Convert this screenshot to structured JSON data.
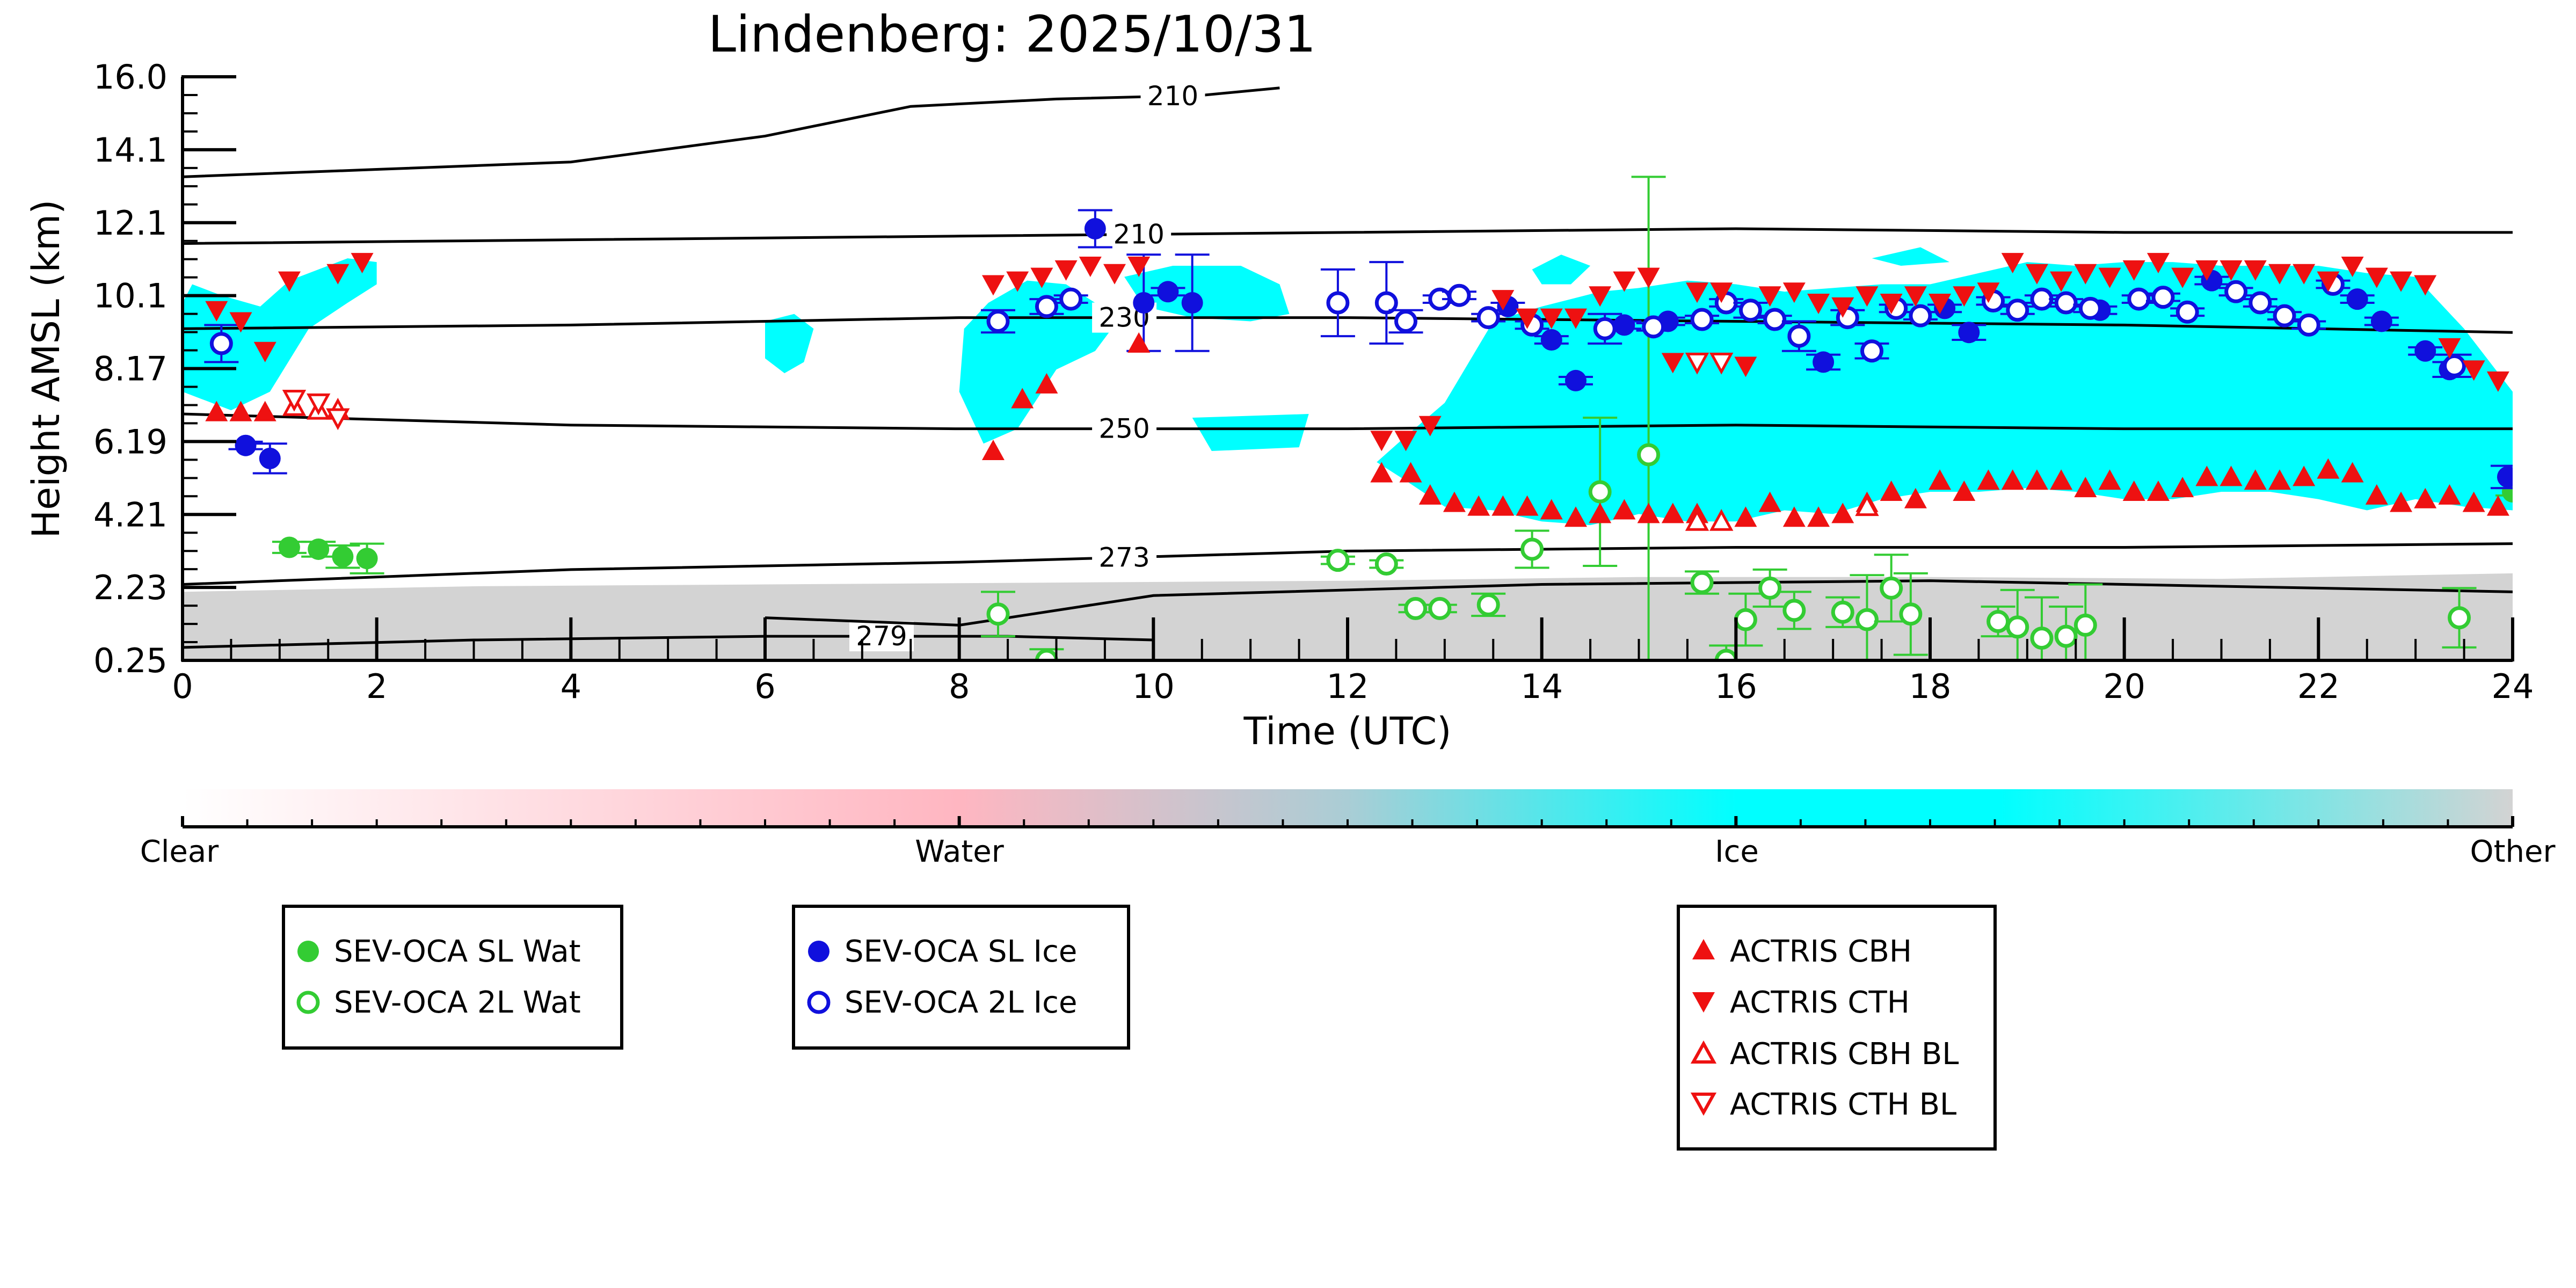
{
  "chart_data": {
    "type": "scatter",
    "title": "Lindenberg: 2025/10/31",
    "xlabel": "Time (UTC)",
    "ylabel": "Height AMSL (km)",
    "xlim": [
      0,
      24
    ],
    "ylim_labels": [
      "0.25",
      "2.23",
      "4.21",
      "6.19",
      "8.17",
      "10.1",
      "12.1",
      "14.1",
      "16.0"
    ],
    "ylim": [
      0.25,
      16.0
    ],
    "x_ticks": [
      "0",
      "2",
      "4",
      "6",
      "8",
      "10",
      "12",
      "14",
      "16",
      "18",
      "20",
      "22",
      "24"
    ],
    "colorbar": {
      "labels": [
        "Clear",
        "Water",
        "Ice",
        "Other"
      ],
      "colors": [
        "#ffffff",
        "#ffb6c1",
        "#00ffff",
        "#d3d3d3"
      ]
    },
    "background": {
      "ice_color": "#00ffff",
      "other_color": "#d3d3d3",
      "ice_regions": [
        {
          "x": [
            0,
            0.1,
            0.4,
            0.8,
            1.1,
            1.4,
            1.7,
            2.0,
            2.0,
            1.7,
            1.3,
            0.9,
            0.5,
            0.2,
            0
          ],
          "y": [
            9.9,
            10.4,
            10.1,
            9.8,
            10.5,
            10.8,
            11.1,
            11.0,
            10.4,
            9.9,
            9.2,
            7.5,
            7.0,
            7.3,
            7.5
          ]
        },
        {
          "x": [
            8.05,
            8.3,
            8.7,
            9.1,
            9.4,
            9.6,
            9.4,
            9.0,
            8.6,
            8.25,
            8.0
          ],
          "y": [
            9.2,
            9.9,
            10.5,
            10.4,
            9.9,
            9.3,
            8.6,
            8.1,
            6.5,
            6.1,
            7.5
          ]
        },
        {
          "x": [
            9.7,
            10.2,
            10.9,
            11.3,
            11.4,
            11.0,
            10.4,
            9.9
          ],
          "y": [
            10.6,
            10.9,
            10.9,
            10.4,
            9.6,
            9.4,
            9.5,
            9.8
          ]
        },
        {
          "x": [
            6.0,
            6.3,
            6.5,
            6.4,
            6.2,
            6.0
          ],
          "y": [
            9.4,
            9.6,
            9.2,
            8.3,
            8.0,
            8.4
          ]
        },
        {
          "x": [
            10.4,
            11.6,
            11.5,
            10.6
          ],
          "y": [
            6.8,
            6.9,
            6.0,
            5.9
          ]
        },
        {
          "x": [
            12.6,
            13.0,
            13.5,
            14.0,
            14.6,
            15.0,
            15.5,
            16.0,
            16.5,
            17.0,
            17.5,
            18.0,
            18.5,
            19.0,
            19.5,
            20.0,
            20.5,
            21.0,
            21.5,
            22.0,
            22.5,
            23.0,
            23.5,
            24.0,
            24.0,
            23.5,
            23.0,
            22.5,
            22.0,
            21.5,
            21.0,
            20.5,
            20.0,
            19.5,
            19.0,
            18.5,
            18.0,
            17.5,
            17.0,
            16.5,
            16.0,
            15.5,
            15.0,
            14.5,
            14.0,
            13.5,
            13.0,
            12.6,
            12.3
          ],
          "y": [
            6.3,
            7.2,
            9.4,
            9.8,
            10.2,
            10.3,
            10.5,
            10.4,
            10.2,
            10.3,
            10.4,
            10.4,
            10.7,
            11.0,
            10.9,
            11.0,
            11.0,
            10.9,
            10.9,
            10.9,
            10.7,
            10.6,
            9.2,
            7.5,
            4.3,
            4.4,
            4.6,
            4.3,
            4.6,
            4.8,
            4.8,
            4.6,
            4.6,
            4.8,
            4.9,
            4.8,
            4.8,
            4.6,
            4.2,
            4.3,
            4.0,
            4.0,
            4.2,
            3.9,
            4.0,
            4.3,
            4.4,
            5.1,
            5.6
          ]
        },
        {
          "x": [
            13.9,
            14.2,
            14.5,
            14.3,
            14.0
          ],
          "y": [
            10.8,
            11.2,
            10.9,
            10.4,
            10.4
          ]
        },
        {
          "x": [
            17.4,
            17.9,
            18.2,
            17.7
          ],
          "y": [
            11.1,
            11.4,
            11.0,
            10.9
          ]
        }
      ],
      "other_region": {
        "top": [
          [
            0,
            2.1
          ],
          [
            3,
            2.25
          ],
          [
            6,
            2.3
          ],
          [
            9,
            2.35
          ],
          [
            12,
            2.4
          ],
          [
            15,
            2.5
          ],
          [
            18,
            2.5
          ],
          [
            21,
            2.45
          ],
          [
            24,
            2.6
          ]
        ]
      }
    },
    "contours": [
      {
        "label": "210",
        "label_x": 10.2,
        "points": [
          [
            0,
            13.3
          ],
          [
            2,
            13.5
          ],
          [
            4,
            13.7
          ],
          [
            6,
            14.4
          ],
          [
            7.5,
            15.2
          ],
          [
            9,
            15.4
          ],
          [
            10.5,
            15.5
          ],
          [
            11.3,
            15.7
          ]
        ]
      },
      {
        "label": "210",
        "label_x": 9.85,
        "points": [
          [
            0,
            11.5
          ],
          [
            4,
            11.6
          ],
          [
            8,
            11.7
          ],
          [
            12,
            11.8
          ],
          [
            16,
            11.9
          ],
          [
            20,
            11.8
          ],
          [
            24,
            11.8
          ]
        ]
      },
      {
        "label": "230",
        "label_x": 9.7,
        "points": [
          [
            0,
            9.2
          ],
          [
            4,
            9.3
          ],
          [
            8,
            9.5
          ],
          [
            12,
            9.5
          ],
          [
            16,
            9.4
          ],
          [
            20,
            9.3
          ],
          [
            24,
            9.1
          ]
        ]
      },
      {
        "label": "250",
        "label_x": 9.7,
        "points": [
          [
            0,
            6.9
          ],
          [
            4,
            6.6
          ],
          [
            8,
            6.5
          ],
          [
            12,
            6.5
          ],
          [
            16,
            6.6
          ],
          [
            20,
            6.5
          ],
          [
            24,
            6.5
          ]
        ]
      },
      {
        "label": "273",
        "label_x": 9.7,
        "points": [
          [
            0,
            2.3
          ],
          [
            4,
            2.7
          ],
          [
            8,
            2.9
          ],
          [
            12,
            3.2
          ],
          [
            16,
            3.3
          ],
          [
            20,
            3.3
          ],
          [
            24,
            3.4
          ]
        ]
      },
      {
        "label": "279",
        "label_x": 7.2,
        "points": [
          [
            0,
            0.6
          ],
          [
            3,
            0.8
          ],
          [
            6,
            0.9
          ],
          [
            8.5,
            0.9
          ],
          [
            10,
            0.8
          ]
        ]
      },
      {
        "label": "",
        "label_x": 0,
        "points": [
          [
            6,
            1.4
          ],
          [
            8,
            1.2
          ],
          [
            10,
            2.0
          ],
          [
            14,
            2.3
          ],
          [
            18,
            2.4
          ],
          [
            22,
            2.2
          ],
          [
            24,
            2.1
          ]
        ]
      }
    ],
    "series": [
      {
        "name": "SEV-OCA SL Wat",
        "marker": "circle-filled",
        "color": "#33cc33",
        "x": [
          1.1,
          1.4,
          1.65,
          1.9,
          24.0
        ],
        "y": [
          3.3,
          3.25,
          3.05,
          3.0,
          4.8
        ],
        "err": [
          0.15,
          0.2,
          0.3,
          0.4,
          0.1
        ]
      },
      {
        "name": "SEV-OCA 2L Wat",
        "marker": "circle-open",
        "color": "#33cc33",
        "x": [
          8.4,
          8.9,
          11.9,
          12.4,
          12.7,
          12.95,
          13.45,
          13.9,
          14.6,
          15.1,
          15.65,
          15.9,
          16.1,
          16.35,
          16.6,
          17.1,
          17.35,
          17.6,
          17.8,
          18.7,
          18.9,
          19.15,
          19.4,
          19.6,
          23.45
        ],
        "y": [
          1.5,
          0.25,
          2.95,
          2.85,
          1.65,
          1.65,
          1.75,
          3.25,
          4.8,
          5.8,
          2.35,
          0.25,
          1.35,
          2.2,
          1.6,
          1.55,
          1.35,
          2.2,
          1.5,
          1.3,
          1.15,
          0.85,
          0.9,
          1.2,
          1.4
        ],
        "err": [
          0.6,
          0.3,
          0.1,
          0.1,
          0.1,
          0.1,
          0.3,
          0.5,
          2.0,
          7.5,
          0.3,
          0.4,
          0.7,
          0.5,
          0.5,
          0.4,
          1.2,
          0.9,
          1.1,
          0.4,
          1.0,
          1.1,
          0.8,
          1.1,
          0.8
        ]
      },
      {
        "name": "SEV-OCA SL Ice",
        "marker": "circle-filled",
        "color": "#1010dd",
        "x": [
          0.65,
          0.9,
          9.4,
          9.9,
          10.15,
          10.4,
          13.65,
          14.1,
          14.35,
          14.85,
          15.3,
          16.9,
          18.15,
          18.4,
          19.75,
          20.9,
          22.4,
          22.65,
          23.1,
          23.35,
          23.95
        ],
        "y": [
          6.05,
          5.7,
          11.9,
          9.9,
          10.2,
          9.9,
          9.8,
          8.9,
          7.8,
          9.3,
          9.4,
          8.3,
          9.75,
          9.1,
          9.7,
          10.5,
          10.0,
          9.4,
          8.6,
          8.1,
          5.2
        ],
        "err": [
          0.1,
          0.4,
          0.5,
          1.3,
          0.1,
          1.3,
          0.1,
          0.1,
          0.1,
          0.1,
          0.1,
          0.2,
          0.1,
          0.2,
          0.1,
          0.1,
          0.1,
          0.1,
          0.1,
          0.2,
          0.3
        ]
      },
      {
        "name": "SEV-OCA 2L Ice",
        "marker": "circle-open",
        "color": "#1010dd",
        "x": [
          0.4,
          8.4,
          8.9,
          9.15,
          11.9,
          12.4,
          12.6,
          12.95,
          13.15,
          13.45,
          13.9,
          14.65,
          15.15,
          15.65,
          15.9,
          16.15,
          16.4,
          16.65,
          17.15,
          17.4,
          17.65,
          17.9,
          18.65,
          18.9,
          19.15,
          19.4,
          19.65,
          20.15,
          20.4,
          20.65,
          21.15,
          21.4,
          21.65,
          21.9,
          22.15,
          23.4
        ],
        "y": [
          8.8,
          9.4,
          9.8,
          10.0,
          9.9,
          9.9,
          9.4,
          10.0,
          10.1,
          9.5,
          9.3,
          9.2,
          9.25,
          9.45,
          9.9,
          9.7,
          9.45,
          9.0,
          9.5,
          8.6,
          9.75,
          9.55,
          9.95,
          9.7,
          10.0,
          9.9,
          9.75,
          10.0,
          10.05,
          9.65,
          10.2,
          9.9,
          9.55,
          9.3,
          10.4,
          8.2
        ],
        "err": [
          0.5,
          0.3,
          0.2,
          0.1,
          0.9,
          1.1,
          0.3,
          0.1,
          0.1,
          0.1,
          0.1,
          0.4,
          0.1,
          0.1,
          0.1,
          0.2,
          0.1,
          0.4,
          0.2,
          0.2,
          0.1,
          0.1,
          0.1,
          0.1,
          0.1,
          0.1,
          0.1,
          0.1,
          0.1,
          0.1,
          0.1,
          0.1,
          0.1,
          0.1,
          0.1,
          0.3
        ]
      },
      {
        "name": "ACTRIS CBH",
        "marker": "triangle-up-filled",
        "color": "#ee1111",
        "x": [
          0.35,
          0.6,
          0.85,
          8.35,
          8.65,
          8.9,
          9.85,
          12.35,
          12.65,
          12.85,
          13.1,
          13.35,
          13.6,
          13.85,
          14.1,
          14.35,
          14.6,
          14.85,
          15.1,
          15.35,
          15.6,
          16.1,
          16.35,
          16.6,
          16.85,
          17.1,
          17.35,
          17.6,
          17.85,
          18.1,
          18.35,
          18.6,
          18.85,
          19.1,
          19.35,
          19.6,
          19.85,
          20.1,
          20.35,
          20.6,
          20.85,
          21.1,
          21.35,
          21.6,
          21.85,
          22.1,
          22.35,
          22.6,
          22.85,
          23.1,
          23.35,
          23.6,
          23.85
        ],
        "y": [
          6.95,
          6.95,
          6.95,
          5.9,
          7.3,
          7.7,
          8.8,
          5.3,
          5.3,
          4.7,
          4.5,
          4.4,
          4.4,
          4.4,
          4.3,
          4.1,
          4.2,
          4.3,
          4.2,
          4.2,
          4.2,
          4.1,
          4.5,
          4.1,
          4.1,
          4.2,
          4.5,
          4.8,
          4.6,
          5.1,
          4.8,
          5.1,
          5.1,
          5.1,
          5.1,
          4.9,
          5.1,
          4.8,
          4.8,
          4.9,
          5.2,
          5.2,
          5.1,
          5.1,
          5.2,
          5.4,
          5.3,
          4.7,
          4.5,
          4.6,
          4.7,
          4.5,
          4.4
        ],
        "err": []
      },
      {
        "name": "ACTRIS CTH",
        "marker": "triangle-down-filled",
        "color": "#ee1111",
        "x": [
          0.35,
          0.6,
          0.85,
          1.1,
          1.6,
          1.85,
          8.35,
          8.6,
          8.85,
          9.1,
          9.35,
          9.6,
          9.85,
          12.35,
          12.6,
          12.85,
          13.6,
          13.85,
          14.1,
          14.35,
          14.6,
          14.85,
          15.1,
          15.35,
          15.6,
          15.85,
          16.1,
          16.35,
          16.6,
          16.85,
          17.1,
          17.35,
          17.6,
          17.85,
          18.1,
          18.35,
          18.6,
          18.85,
          19.1,
          19.35,
          19.6,
          19.85,
          20.1,
          20.35,
          20.6,
          20.85,
          21.1,
          21.35,
          21.6,
          21.85,
          22.1,
          22.35,
          22.6,
          22.85,
          23.1,
          23.35,
          23.6,
          23.85
        ],
        "y": [
          9.7,
          9.4,
          8.6,
          10.5,
          10.7,
          11.0,
          10.4,
          10.5,
          10.6,
          10.8,
          10.9,
          10.7,
          10.9,
          6.2,
          6.2,
          6.6,
          10.0,
          9.5,
          9.5,
          9.5,
          10.1,
          10.5,
          10.6,
          8.3,
          10.2,
          10.2,
          8.2,
          10.1,
          10.2,
          9.9,
          9.8,
          10.1,
          9.9,
          10.1,
          9.9,
          10.1,
          10.2,
          11.0,
          10.7,
          10.5,
          10.7,
          10.6,
          10.8,
          11.0,
          10.6,
          10.8,
          10.8,
          10.8,
          10.7,
          10.7,
          10.5,
          10.9,
          10.6,
          10.5,
          10.4,
          8.7,
          8.1,
          7.8
        ],
        "err": []
      },
      {
        "name": "ACTRIS CBH BL",
        "marker": "triangle-up-open",
        "color": "#ee1111",
        "x": [
          1.15,
          1.4,
          1.6,
          15.6,
          15.85,
          17.35
        ],
        "y": [
          7.1,
          7.0,
          7.0,
          4.0,
          4.0,
          4.4
        ],
        "err": []
      },
      {
        "name": "ACTRIS CTH BL",
        "marker": "triangle-down-open",
        "color": "#ee1111",
        "x": [
          1.15,
          1.4,
          1.6,
          15.6,
          15.85
        ],
        "y": [
          7.3,
          7.2,
          6.8,
          8.3,
          8.3
        ],
        "err": []
      }
    ]
  }
}
